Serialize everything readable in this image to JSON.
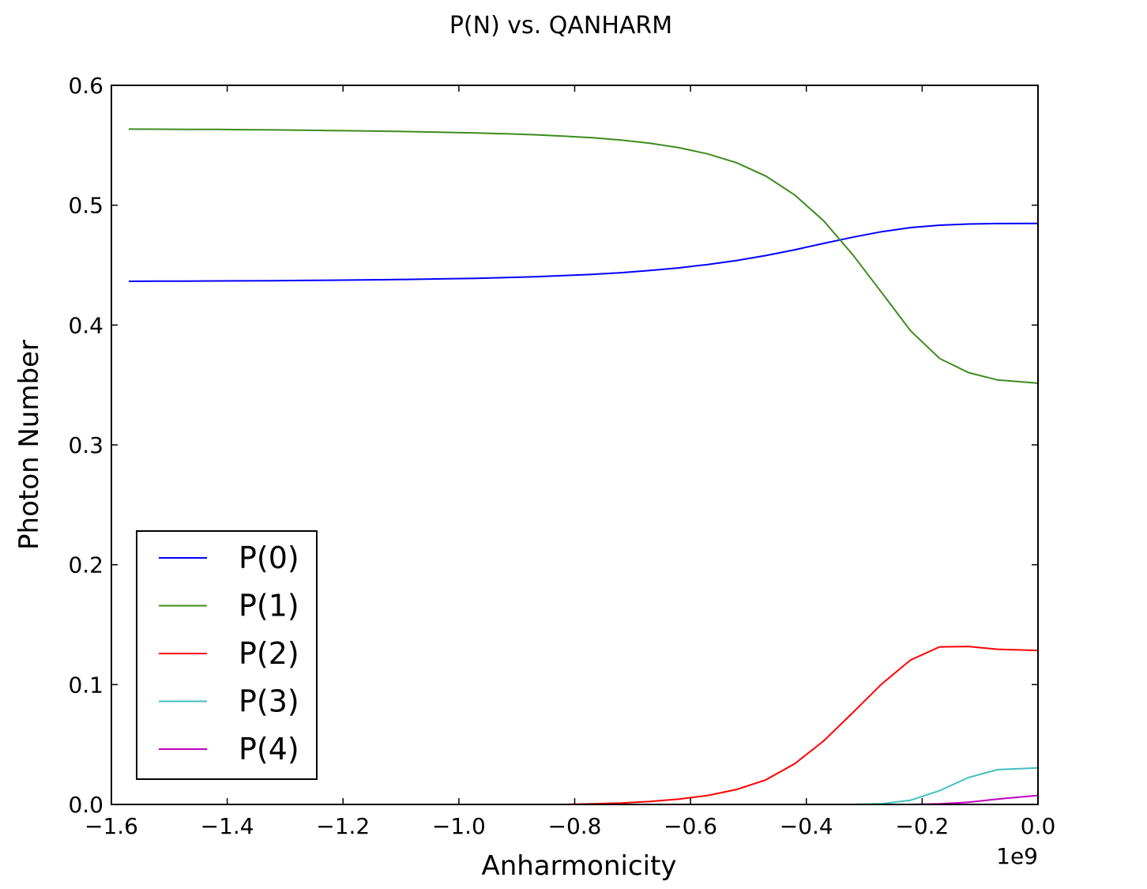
{
  "chart_data": {
    "type": "line",
    "title": "P(N) vs. QANHARM",
    "xlabel": "Anharmonicity",
    "ylabel": "Photon Number",
    "x_offset_label": "1e9",
    "xlim": [
      -1.6,
      0.0
    ],
    "ylim": [
      0.0,
      0.6
    ],
    "xticks": [
      -1.6,
      -1.4,
      -1.2,
      -1.0,
      -0.8,
      -0.6,
      -0.4,
      -0.2,
      0.0
    ],
    "xtick_labels": [
      "−1.6",
      "−1.4",
      "−1.2",
      "−1.0",
      "−0.8",
      "−0.6",
      "−0.4",
      "−0.2",
      "0.0"
    ],
    "yticks": [
      0.0,
      0.1,
      0.2,
      0.3,
      0.4,
      0.5,
      0.6
    ],
    "ytick_labels": [
      "0.0",
      "0.1",
      "0.2",
      "0.3",
      "0.4",
      "0.5",
      "0.6"
    ],
    "grid": false,
    "legend_position": "lower-left",
    "x": [
      -1.57,
      -1.52,
      -1.47,
      -1.42,
      -1.37,
      -1.32,
      -1.27,
      -1.22,
      -1.17,
      -1.12,
      -1.07,
      -1.02,
      -0.97,
      -0.92,
      -0.87,
      -0.82,
      -0.77,
      -0.72,
      -0.67,
      -0.62,
      -0.57,
      -0.52,
      -0.47,
      -0.42,
      -0.37,
      -0.32,
      -0.27,
      -0.22,
      -0.17,
      -0.12,
      -0.07,
      0.0
    ],
    "series": [
      {
        "name": "P(0)",
        "color": "#0000ff",
        "values": [
          0.4365,
          0.4366,
          0.4367,
          0.4368,
          0.4369,
          0.437,
          0.4372,
          0.4374,
          0.4376,
          0.4379,
          0.4382,
          0.4386,
          0.439,
          0.4396,
          0.4403,
          0.4412,
          0.4423,
          0.4437,
          0.4455,
          0.4477,
          0.4505,
          0.4539,
          0.458,
          0.4628,
          0.4681,
          0.4733,
          0.4779,
          0.4813,
          0.4833,
          0.4843,
          0.4847,
          0.4848
        ]
      },
      {
        "name": "P(1)",
        "color": "#3c8c1e",
        "values": [
          0.5635,
          0.5634,
          0.5633,
          0.5632,
          0.563,
          0.5628,
          0.5626,
          0.5623,
          0.562,
          0.5617,
          0.5613,
          0.5608,
          0.5603,
          0.5596,
          0.5588,
          0.5577,
          0.5563,
          0.5544,
          0.5517,
          0.548,
          0.5428,
          0.5353,
          0.5243,
          0.5085,
          0.4869,
          0.4588,
          0.4271,
          0.3952,
          0.3721,
          0.3603,
          0.3542,
          0.3515
        ]
      },
      {
        "name": "P(2)",
        "color": "#ff0000",
        "values": [
          0.0,
          0.0,
          0.0,
          0.0,
          0.0,
          0.0,
          0.0,
          0.0,
          0.0,
          0.0,
          0.0,
          0.0,
          0.0,
          0.0,
          0.0,
          0.0,
          0.0005,
          0.0012,
          0.0025,
          0.0045,
          0.0075,
          0.0125,
          0.0205,
          0.034,
          0.053,
          0.0765,
          0.1005,
          0.1205,
          0.1315,
          0.1318,
          0.1295,
          0.1285
        ]
      },
      {
        "name": "P(3)",
        "color": "#40bfbf",
        "values": [
          0.0,
          0.0,
          0.0,
          0.0,
          0.0,
          0.0,
          0.0,
          0.0,
          0.0,
          0.0,
          0.0,
          0.0,
          0.0,
          0.0,
          0.0,
          0.0,
          0.0,
          0.0,
          0.0,
          0.0,
          0.0,
          0.0,
          0.0,
          0.0,
          0.0,
          0.0,
          0.0006,
          0.0035,
          0.0115,
          0.0225,
          0.029,
          0.0305
        ]
      },
      {
        "name": "P(4)",
        "color": "#bf00bf",
        "values": [
          0.0,
          0.0,
          0.0,
          0.0,
          0.0,
          0.0,
          0.0,
          0.0,
          0.0,
          0.0,
          0.0,
          0.0,
          0.0,
          0.0,
          0.0,
          0.0,
          0.0,
          0.0,
          0.0,
          0.0,
          0.0,
          0.0,
          0.0,
          0.0,
          0.0,
          0.0,
          0.0,
          0.0,
          0.0005,
          0.0018,
          0.0045,
          0.0075
        ]
      }
    ]
  }
}
